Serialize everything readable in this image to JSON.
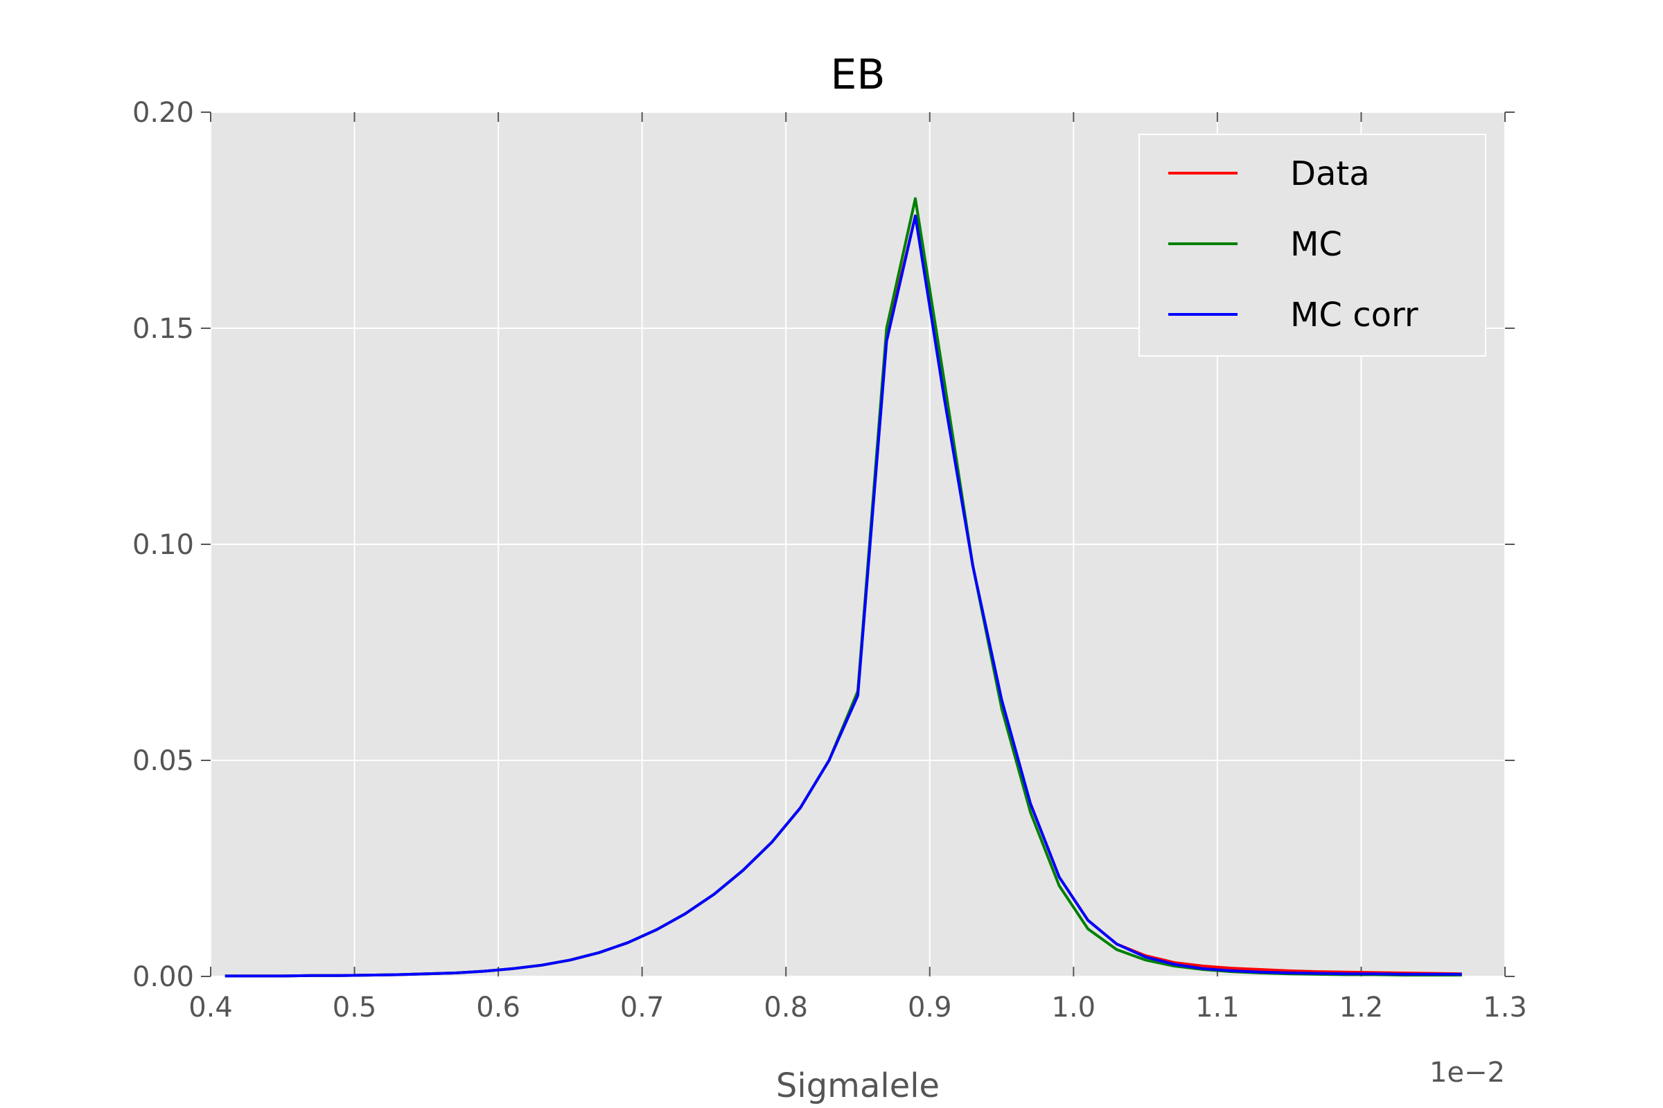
{
  "chart_data": {
    "type": "line",
    "title": "EB",
    "xlabel": "Sigmalele",
    "ylabel": "",
    "x_offset_label": "1e−2",
    "xlim": [
      0.4,
      1.3
    ],
    "ylim": [
      0.0,
      0.2
    ],
    "xticks": [
      "0.4",
      "0.5",
      "0.6",
      "0.7",
      "0.8",
      "0.9",
      "1.0",
      "1.1",
      "1.2",
      "1.3"
    ],
    "yticks": [
      "0.00",
      "0.05",
      "0.10",
      "0.15",
      "0.20"
    ],
    "grid": true,
    "legend_position": "top-right",
    "x": [
      0.41,
      0.43,
      0.45,
      0.47,
      0.49,
      0.51,
      0.53,
      0.55,
      0.57,
      0.59,
      0.61,
      0.63,
      0.65,
      0.67,
      0.69,
      0.71,
      0.73,
      0.75,
      0.77,
      0.79,
      0.81,
      0.83,
      0.85,
      0.87,
      0.89,
      0.91,
      0.93,
      0.95,
      0.97,
      0.99,
      1.01,
      1.03,
      1.05,
      1.07,
      1.09,
      1.11,
      1.13,
      1.15,
      1.17,
      1.19,
      1.21,
      1.23,
      1.25,
      1.27
    ],
    "series": [
      {
        "name": "Data",
        "color": "#ff0000",
        "values": [
          0.0001,
          0.0001,
          0.0001,
          0.0002,
          0.0002,
          0.0003,
          0.0004,
          0.0006,
          0.0008,
          0.0012,
          0.0018,
          0.0026,
          0.0038,
          0.0055,
          0.0078,
          0.0108,
          0.0145,
          0.019,
          0.0245,
          0.031,
          0.039,
          0.05,
          0.066,
          0.148,
          0.176,
          0.135,
          0.095,
          0.063,
          0.04,
          0.023,
          0.013,
          0.0075,
          0.0048,
          0.0032,
          0.0024,
          0.0019,
          0.0016,
          0.0013,
          0.0011,
          0.001,
          0.0009,
          0.0008,
          0.0007,
          0.0006
        ]
      },
      {
        "name": "MC",
        "color": "#008000",
        "values": [
          0.0001,
          0.0001,
          0.0001,
          0.0002,
          0.0002,
          0.0003,
          0.0004,
          0.0006,
          0.0008,
          0.0012,
          0.0018,
          0.0026,
          0.0038,
          0.0055,
          0.0078,
          0.0108,
          0.0145,
          0.019,
          0.0245,
          0.031,
          0.039,
          0.05,
          0.066,
          0.15,
          0.18,
          0.138,
          0.095,
          0.062,
          0.038,
          0.021,
          0.011,
          0.0062,
          0.0038,
          0.0024,
          0.0016,
          0.0011,
          0.0008,
          0.0006,
          0.0005,
          0.0004,
          0.0004,
          0.0003,
          0.0003,
          0.0003
        ]
      },
      {
        "name": "MC corr",
        "color": "#0000ff",
        "values": [
          0.0001,
          0.0001,
          0.0001,
          0.0002,
          0.0002,
          0.0003,
          0.0004,
          0.0006,
          0.0008,
          0.0012,
          0.0018,
          0.0026,
          0.0038,
          0.0055,
          0.0078,
          0.0108,
          0.0145,
          0.019,
          0.0245,
          0.031,
          0.039,
          0.05,
          0.065,
          0.147,
          0.176,
          0.134,
          0.095,
          0.064,
          0.04,
          0.023,
          0.013,
          0.0075,
          0.0045,
          0.0028,
          0.0018,
          0.0013,
          0.001,
          0.0008,
          0.0007,
          0.0006,
          0.0006,
          0.0005,
          0.0005,
          0.0005
        ]
      }
    ]
  }
}
